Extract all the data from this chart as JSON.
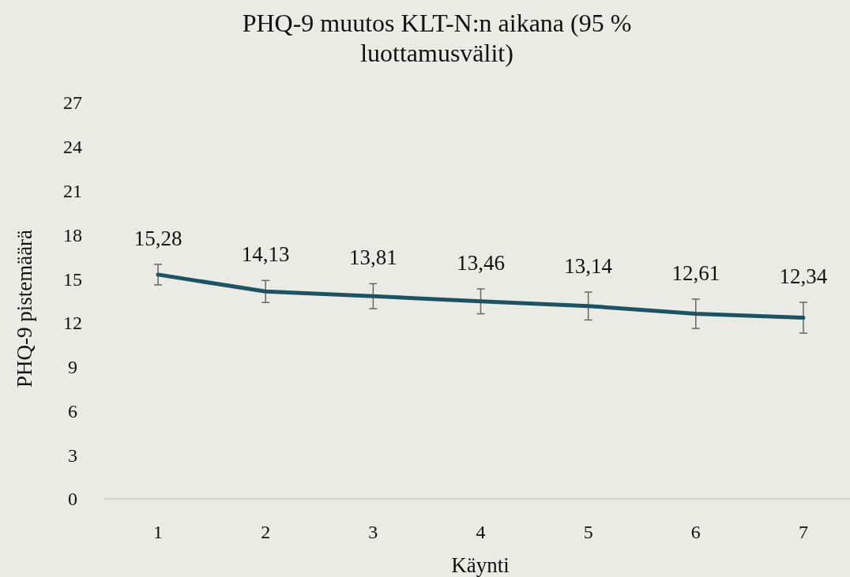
{
  "chart_data": {
    "type": "line",
    "title": "PHQ-9 muutos KLT-N:n aikana (95 % luottamusvälit)",
    "xlabel": "Käynti",
    "ylabel": "PHQ-9 pistemäärä",
    "categories": [
      "1",
      "2",
      "3",
      "4",
      "5",
      "6",
      "7"
    ],
    "series": [
      {
        "color": "#1d5263",
        "values": [
          15.28,
          14.13,
          13.81,
          13.46,
          13.14,
          12.61,
          12.34
        ],
        "value_labels": [
          "15,28",
          "14,13",
          "13,81",
          "13,46",
          "13,14",
          "12,61",
          "12,34"
        ],
        "errors": [
          0.7,
          0.75,
          0.85,
          0.85,
          0.95,
          1.0,
          1.05
        ]
      }
    ],
    "ylim": [
      0,
      27
    ],
    "yticks": [
      0,
      3,
      6,
      9,
      12,
      15,
      18,
      21,
      24,
      27
    ],
    "grid": false,
    "marker": "none",
    "line_style": "solid"
  }
}
